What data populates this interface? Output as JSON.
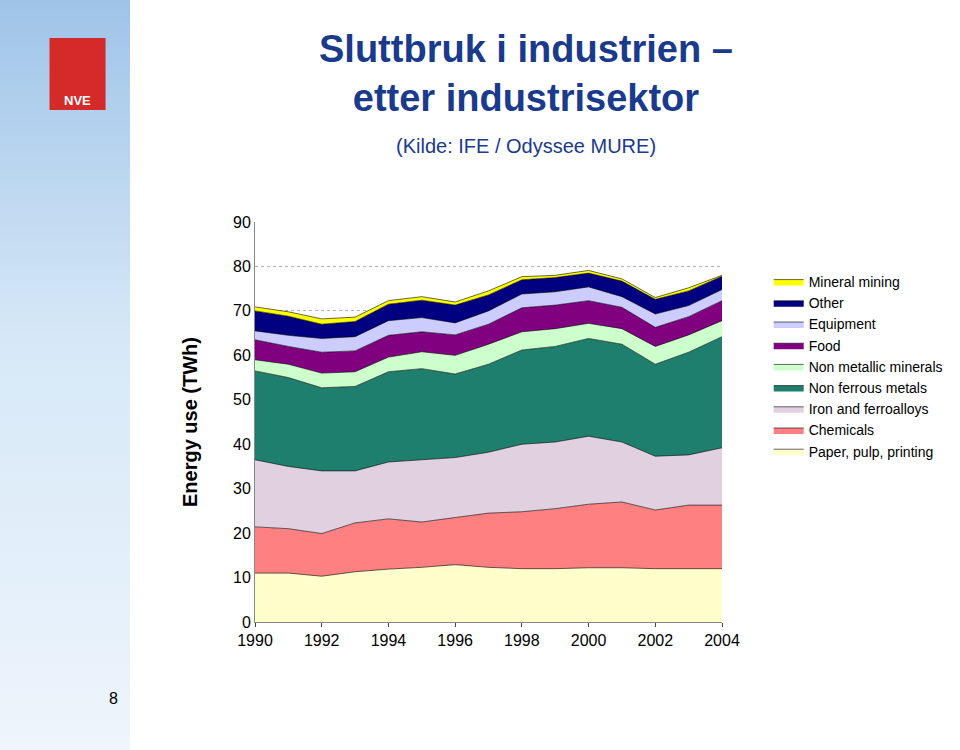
{
  "chart_data": {
    "type": "area",
    "title": "Sluttbruk i industrien –\netter industrisektor",
    "subtitle": "(Kilde: IFE / Odyssee MURE)",
    "y_label": "Energy use (TWh)",
    "annotations": [
      "NVE",
      "8"
    ],
    "stacked": true,
    "grid": true,
    "legend": "right",
    "x": [
      1990,
      1991,
      1992,
      1993,
      1994,
      1995,
      1996,
      1997,
      1998,
      1999,
      2000,
      2001,
      2002,
      2003,
      2004
    ],
    "xlim": [
      1990,
      2004
    ],
    "xticks": [
      1990,
      1992,
      1994,
      1996,
      1998,
      2000,
      2002,
      2004
    ],
    "ylim": [
      0,
      90
    ],
    "yticks": [
      0,
      10,
      20,
      30,
      40,
      50,
      60,
      70,
      80,
      90
    ],
    "series": [
      {
        "name": "Paper, pulp, printing",
        "color": "#ffffcc",
        "values": [
          11,
          11,
          10.3,
          11.3,
          11.9,
          12.3,
          12.9,
          12.3,
          12,
          12,
          12.2,
          12.2,
          12,
          12,
          12
        ]
      },
      {
        "name": "Chemicals",
        "color": "#ff8080",
        "values": [
          10.4,
          10,
          9.6,
          11,
          11.3,
          10.2,
          10.6,
          12.2,
          12.8,
          13.5,
          14.3,
          14.8,
          13.2,
          14.3,
          14.3
        ]
      },
      {
        "name": "Iron and ferroalloys",
        "color": "#e0d0e0",
        "values": [
          15.1,
          14,
          14.1,
          11.7,
          12.8,
          14,
          13.5,
          13.7,
          15.2,
          15,
          15.3,
          13.5,
          12.1,
          11.3,
          12.9
        ]
      },
      {
        "name": "Non ferrous metals",
        "color": "#1f7f6e",
        "values": [
          20,
          20,
          18.7,
          19,
          20.3,
          20.5,
          18.8,
          19.8,
          21.2,
          21.5,
          22,
          22,
          20.7,
          23.1,
          25
        ]
      },
      {
        "name": "Non metallic minerals",
        "color": "#ccffcc",
        "values": [
          2.5,
          3,
          3.3,
          3.3,
          3.3,
          3.8,
          4.2,
          4.5,
          4.1,
          4,
          3.4,
          3.5,
          4,
          3.9,
          3.6
        ]
      },
      {
        "name": "Food",
        "color": "#800080",
        "values": [
          4.5,
          4,
          4.7,
          4.7,
          4.9,
          4.5,
          4.6,
          4.5,
          5.4,
          5.3,
          5.1,
          4.8,
          4.3,
          4.1,
          4.5
        ]
      },
      {
        "name": "Equipment",
        "color": "#ccccff",
        "values": [
          2,
          2.5,
          3.1,
          3.2,
          3.3,
          3.2,
          2.7,
          3,
          3.1,
          3,
          3.1,
          2.4,
          3,
          2.5,
          2.5
        ]
      },
      {
        "name": "Other",
        "color": "#000080",
        "values": [
          4.5,
          4.3,
          3.2,
          3.4,
          3.7,
          3.9,
          4,
          3.6,
          3.2,
          3.2,
          3.1,
          3.5,
          3.3,
          3.3,
          3
        ]
      },
      {
        "name": "Mineral mining",
        "color": "#ffff00",
        "values": [
          0.9,
          1,
          1.2,
          1,
          0.8,
          0.8,
          0.7,
          0.9,
          0.7,
          0.5,
          0.6,
          0.5,
          0.4,
          0.7,
          0.2
        ]
      }
    ]
  }
}
